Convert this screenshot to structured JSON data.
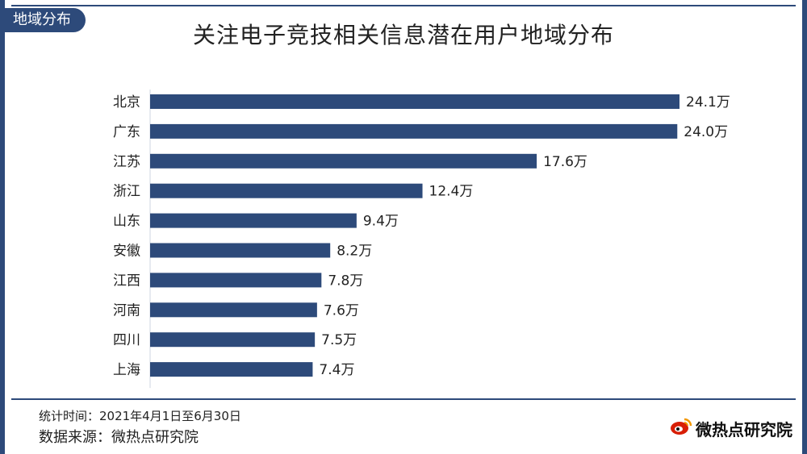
{
  "header": {
    "tag": "地域分布",
    "title": "关注电子竞技相关信息潜在用户地域分布"
  },
  "footer": {
    "stat_period": "统计时间：2021年4月1日至6月30日",
    "source": "数据来源：微热点研究院",
    "logo_text": "微热点研究院"
  },
  "colors": {
    "bar": "#2d4a7a",
    "accent": "#2d4a7a",
    "logo_red": "#d81e06"
  },
  "chart_data": {
    "type": "bar",
    "orientation": "horizontal",
    "title": "关注电子竞技相关信息潜在用户地域分布",
    "categories": [
      "北京",
      "广东",
      "江苏",
      "浙江",
      "山东",
      "安徽",
      "江西",
      "河南",
      "四川",
      "上海"
    ],
    "values": [
      24.1,
      24.0,
      17.6,
      12.4,
      9.4,
      8.2,
      7.8,
      7.6,
      7.5,
      7.4
    ],
    "value_labels": [
      "24.1万",
      "24.0万",
      "17.6万",
      "12.4万",
      "9.4万",
      "8.2万",
      "7.8万",
      "7.6万",
      "7.5万",
      "7.4万"
    ],
    "unit": "万",
    "xlim": [
      0,
      24.1
    ],
    "grid": false,
    "legend": "none"
  }
}
